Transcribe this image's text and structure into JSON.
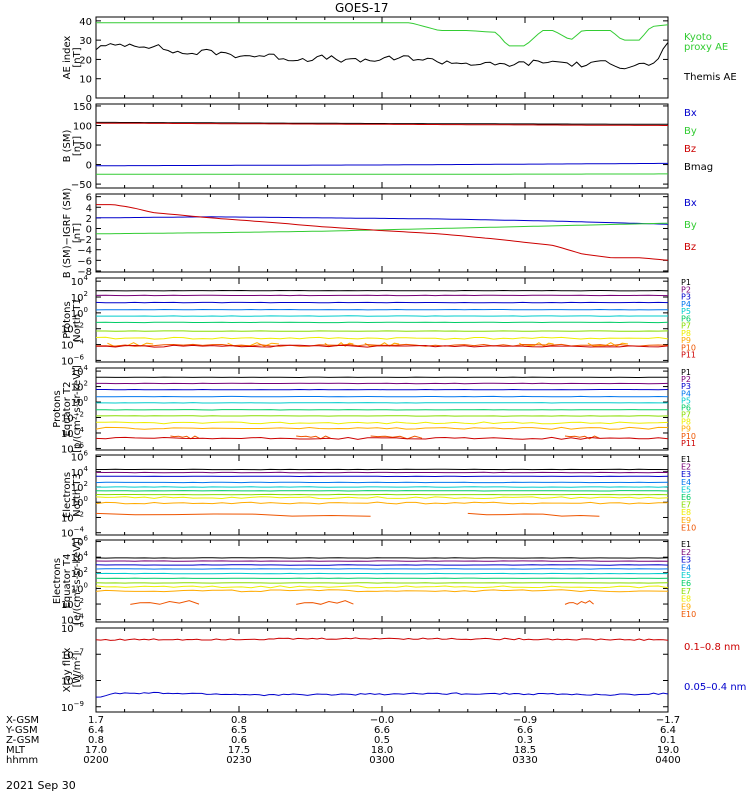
{
  "title": "GOES-17",
  "date": "2021 Sep 30",
  "ephemeris": {
    "labels": [
      "X-GSM",
      "Y-GSM",
      "Z-GSM",
      "MLT",
      "hhmm"
    ],
    "columns": [
      [
        "1.7",
        "6.4",
        "0.8",
        "17.0",
        "0200"
      ],
      [
        "0.8",
        "6.5",
        "0.6",
        "17.5",
        "0230"
      ],
      [
        "−0.0",
        "6.6",
        "0.5",
        "18.0",
        "0300"
      ],
      [
        "−0.9",
        "6.6",
        "0.3",
        "18.5",
        "0330"
      ],
      [
        "−1.7",
        "6.4",
        "0.1",
        "19.0",
        "0400"
      ]
    ]
  },
  "colors": {
    "black": "#000000",
    "red": "#cc0000",
    "green": "#33cc33",
    "blue": "#0000cc",
    "p_channels": [
      "#000000",
      "#770077",
      "#0000cc",
      "#0077ee",
      "#00cccc",
      "#00cc66",
      "#88dd00",
      "#eeee00",
      "#ffaa00",
      "#ee5500",
      "#cc0000"
    ],
    "e_channels": [
      "#000000",
      "#770077",
      "#0000cc",
      "#0077ee",
      "#00cccc",
      "#00cc66",
      "#88dd00",
      "#eeee00",
      "#ffaa00",
      "#ee5500",
      "#cc0000"
    ]
  },
  "chart_data": [
    {
      "type": "line",
      "id": "ae",
      "ylabel": [
        "AE index",
        "[nT]"
      ],
      "ylim": [
        0,
        42
      ],
      "yticks": [
        {
          "v": 0,
          "t": "0"
        },
        {
          "v": 10,
          "t": "10"
        },
        {
          "v": 20,
          "t": "20"
        },
        {
          "v": 30,
          "t": "30"
        },
        {
          "v": 40,
          "t": "40"
        }
      ],
      "legend": [
        {
          "text": "Kyoto",
          "color": "#33cc33"
        },
        {
          "text": "proxy AE",
          "color": "#33cc33"
        },
        {
          "text": "Themis AE",
          "color": "#000000"
        }
      ],
      "series": [
        {
          "name": "Kyoto proxy AE",
          "color": "#33cc33",
          "x": [
            0,
            0.5,
            0.55,
            0.6,
            0.65,
            0.7,
            0.72,
            0.75,
            0.78,
            0.8,
            0.83,
            0.85,
            0.9,
            0.92,
            0.95,
            0.97,
            1
          ],
          "y": [
            39,
            39,
            39,
            35,
            35,
            34,
            27,
            27,
            35,
            35,
            30,
            35,
            35,
            30,
            30,
            37,
            38
          ]
        },
        {
          "name": "Themis AE",
          "color": "#000000",
          "x": [
            0,
            0.05,
            0.1,
            0.15,
            0.2,
            0.25,
            0.3,
            0.35,
            0.4,
            0.45,
            0.5,
            0.55,
            0.6,
            0.65,
            0.7,
            0.75,
            0.8,
            0.85,
            0.88,
            0.9,
            0.92,
            0.95,
            0.97,
            1
          ],
          "y": [
            26,
            28,
            27,
            23,
            24,
            22,
            22,
            20,
            21,
            19,
            20,
            21,
            19,
            18,
            17,
            18,
            19,
            17,
            18,
            19,
            16,
            18,
            16,
            28
          ]
        }
      ]
    },
    {
      "type": "line",
      "id": "bsm",
      "ylabel": [
        "B (SM)",
        "[nT]"
      ],
      "ylim": [
        -60,
        155
      ],
      "yticks": [
        {
          "v": -50,
          "t": "−50"
        },
        {
          "v": 0,
          "t": "0"
        },
        {
          "v": 50,
          "t": "50"
        },
        {
          "v": 100,
          "t": "100"
        },
        {
          "v": 150,
          "t": "150"
        }
      ],
      "legend": [
        {
          "text": "Bx",
          "color": "#0000cc"
        },
        {
          "text": "By",
          "color": "#33cc33"
        },
        {
          "text": "Bz",
          "color": "#cc0000"
        },
        {
          "text": "Bmag",
          "color": "#000000"
        }
      ],
      "series": [
        {
          "name": "Bmag",
          "color": "#000000",
          "x": [
            0,
            0.5,
            1
          ],
          "y": [
            108,
            105,
            103
          ]
        },
        {
          "name": "Bz",
          "color": "#cc0000",
          "x": [
            0,
            0.5,
            1
          ],
          "y": [
            106,
            103,
            100
          ]
        },
        {
          "name": "Bx",
          "color": "#0000cc",
          "x": [
            0,
            0.5,
            1
          ],
          "y": [
            -3,
            -1,
            3
          ]
        },
        {
          "name": "By",
          "color": "#33cc33",
          "x": [
            0,
            0.5,
            1
          ],
          "y": [
            -25,
            -25,
            -24
          ]
        }
      ]
    },
    {
      "type": "line",
      "id": "bdiff",
      "ylabel": [
        "B (SM)−IGRF (SM)",
        "[nT]"
      ],
      "ylim": [
        -8.2,
        6.5
      ],
      "yticks": [
        {
          "v": -8,
          "t": "−8"
        },
        {
          "v": -6,
          "t": "−6"
        },
        {
          "v": -4,
          "t": "−4"
        },
        {
          "v": -2,
          "t": "−2"
        },
        {
          "v": 0,
          "t": "0"
        },
        {
          "v": 2,
          "t": "2"
        },
        {
          "v": 4,
          "t": "4"
        },
        {
          "v": 6,
          "t": "6"
        }
      ],
      "legend": [
        {
          "text": "Bx",
          "color": "#0000cc"
        },
        {
          "text": "By",
          "color": "#33cc33"
        },
        {
          "text": "Bz",
          "color": "#cc0000"
        }
      ],
      "series": [
        {
          "name": "Bx",
          "color": "#0000cc",
          "x": [
            0,
            0.2,
            0.4,
            0.6,
            0.8,
            1
          ],
          "y": [
            2,
            2.2,
            2,
            1.8,
            1.4,
            0.8
          ]
        },
        {
          "name": "By",
          "color": "#33cc33",
          "x": [
            0,
            0.2,
            0.4,
            0.6,
            0.8,
            1
          ],
          "y": [
            -1,
            -0.8,
            -0.5,
            0,
            0.5,
            1
          ]
        },
        {
          "name": "Bz",
          "color": "#cc0000",
          "x": [
            0,
            0.03,
            0.06,
            0.1,
            0.2,
            0.3,
            0.4,
            0.5,
            0.6,
            0.7,
            0.8,
            0.85,
            0.9,
            0.95,
            1
          ],
          "y": [
            4.5,
            4.5,
            4,
            3,
            2,
            1.2,
            0.3,
            -0.4,
            -1,
            -2,
            -3.2,
            -4.8,
            -5.5,
            -5.5,
            -6
          ]
        }
      ]
    },
    {
      "type": "line",
      "id": "pnorth",
      "log": true,
      "ylabel": [
        "Protons",
        "North T1"
      ],
      "ylim": [
        -6.2,
        4.4
      ],
      "yticks": [
        {
          "v": -6,
          "t": "10",
          "e": "−6"
        },
        {
          "v": -4,
          "t": "10",
          "e": "−4"
        },
        {
          "v": -2,
          "t": "10",
          "e": "−2"
        },
        {
          "v": 0,
          "t": "10",
          "e": "0"
        },
        {
          "v": 2,
          "t": "10",
          "e": "2"
        },
        {
          "v": 4,
          "t": "10",
          "e": "4"
        }
      ],
      "channels": [
        "P1",
        "P2",
        "P3",
        "P4",
        "P5",
        "P6",
        "P7",
        "P8",
        "P9",
        "P10",
        "P11"
      ],
      "levels": [
        2.8,
        2.2,
        1.3,
        0.4,
        -0.4,
        -1.2,
        -2.3,
        -3.2,
        -4.0,
        -4.1,
        -4.2
      ],
      "broken": {
        "level": -4.0,
        "segments": [
          [
            0.02,
            0.1
          ],
          [
            0.23,
            0.32
          ],
          [
            0.4,
            0.45
          ],
          [
            0.47,
            0.53
          ],
          [
            0.74,
            0.8
          ],
          [
            0.86,
            0.93
          ]
        ]
      }
    },
    {
      "type": "line",
      "id": "peq",
      "log": true,
      "ylabel": [
        "Protons",
        "Equator T2",
        "[p/(cm²-s-sr-keV)]"
      ],
      "ylim": [
        -6.2,
        4.4
      ],
      "yticks": [
        {
          "v": -6,
          "t": "10",
          "e": "−6"
        },
        {
          "v": -4,
          "t": "10",
          "e": "−4"
        },
        {
          "v": -2,
          "t": "10",
          "e": "−2"
        },
        {
          "v": 0,
          "t": "10",
          "e": "0"
        },
        {
          "v": 2,
          "t": "10",
          "e": "2"
        },
        {
          "v": 4,
          "t": "10",
          "e": "4"
        }
      ],
      "channels": [
        "P1",
        "P2",
        "P3",
        "P4",
        "P5",
        "P6",
        "P7",
        "P8",
        "P9",
        "P10",
        "P11"
      ],
      "levels": [
        3.2,
        2.4,
        1.6,
        0.7,
        -0.1,
        -1.0,
        -1.8,
        -2.7,
        -3.4,
        -4.6,
        -4.7
      ],
      "broken": {
        "level": -4.6,
        "segments": [
          [
            0.13,
            0.18
          ],
          [
            0.35,
            0.41
          ],
          [
            0.48,
            0.57
          ],
          [
            0.82,
            0.88
          ]
        ]
      }
    },
    {
      "type": "line",
      "id": "enorth",
      "log": true,
      "ylabel": [
        "Electrons",
        "North T3"
      ],
      "ylim": [
        -4.3,
        6.2
      ],
      "yticks": [
        {
          "v": -4,
          "t": "10",
          "e": "−4"
        },
        {
          "v": -2,
          "t": "10",
          "e": "−2"
        },
        {
          "v": 0,
          "t": "10",
          "e": "0"
        },
        {
          "v": 2,
          "t": "10",
          "e": "2"
        },
        {
          "v": 4,
          "t": "10",
          "e": "4"
        },
        {
          "v": 6,
          "t": "10",
          "e": "6"
        }
      ],
      "channels": [
        "E1",
        "E2",
        "E3",
        "E4",
        "E5",
        "E6",
        "E7",
        "E8",
        "E9",
        "E10"
      ],
      "levels": [
        4.3,
        3.9,
        3.4,
        2.6,
        2.0,
        1.5,
        1.0,
        0.6,
        -0.1,
        -1.7
      ],
      "broken": {
        "level": -1.7,
        "segments": [
          [
            0.0,
            0.48
          ],
          [
            0.65,
            0.88
          ]
        ]
      }
    },
    {
      "type": "line",
      "id": "eeq",
      "log": true,
      "ylabel": [
        "Electrons",
        "Equator T4",
        "[e/(cm²-s-sr-keV)]"
      ],
      "ylim": [
        -4.3,
        6.2
      ],
      "yticks": [
        {
          "v": -4,
          "t": "10",
          "e": "−4"
        },
        {
          "v": -2,
          "t": "10",
          "e": "−2"
        },
        {
          "v": 0,
          "t": "10",
          "e": "0"
        },
        {
          "v": 2,
          "t": "10",
          "e": "2"
        },
        {
          "v": 4,
          "t": "10",
          "e": "4"
        },
        {
          "v": 6,
          "t": "10",
          "e": "6"
        }
      ],
      "channels": [
        "E1",
        "E2",
        "E3",
        "E4",
        "E5",
        "E6",
        "E7",
        "E8",
        "E9",
        "E10"
      ],
      "levels": [
        3.9,
        3.5,
        3.0,
        2.5,
        1.9,
        1.3,
        0.7,
        0.2,
        -0.3,
        -1.8
      ],
      "broken": {
        "level": -1.8,
        "segments": [
          [
            0.06,
            0.18
          ],
          [
            0.35,
            0.45
          ],
          [
            0.82,
            0.87
          ]
        ]
      }
    },
    {
      "type": "line",
      "id": "xray",
      "log": true,
      "ylabel": [
        "Xray flux",
        "[W/m²]"
      ],
      "ylim": [
        -9.2,
        -6.0
      ],
      "yticks": [
        {
          "v": -9,
          "t": "10",
          "e": "−9"
        },
        {
          "v": -8,
          "t": "10",
          "e": "−8"
        },
        {
          "v": -7,
          "t": "10",
          "e": "−7"
        },
        {
          "v": -6,
          "t": "10",
          "e": "−6"
        }
      ],
      "legend": [
        {
          "text": "0.1–0.8 nm",
          "color": "#cc0000"
        },
        {
          "text": "0.05–0.4 nm",
          "color": "#0000cc"
        }
      ],
      "series": [
        {
          "name": "0.1–0.8 nm",
          "color": "#cc0000",
          "x": [
            0,
            0.5,
            1
          ],
          "y": [
            -6.45,
            -6.4,
            -6.45
          ]
        },
        {
          "name": "0.05–0.4 nm",
          "color": "#0000cc",
          "x": [
            0,
            0.03,
            0.1,
            0.3,
            0.5,
            0.6,
            0.7,
            0.8,
            0.9,
            1
          ],
          "y": [
            -8.65,
            -8.5,
            -8.48,
            -8.55,
            -8.52,
            -8.5,
            -8.5,
            -8.52,
            -8.55,
            -8.5
          ]
        }
      ]
    }
  ]
}
